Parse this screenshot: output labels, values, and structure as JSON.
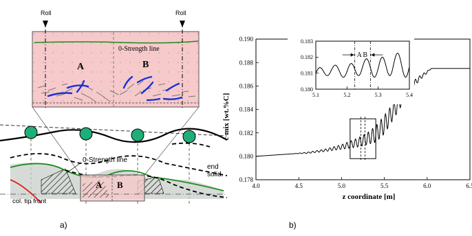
{
  "panel_a": {
    "roll_label": "Roll",
    "zero_strength_label": "0-Strength line",
    "region_a": "A",
    "region_b": "B",
    "end_solid_label": "end\nsolid.",
    "col_tip_front_label": "col. tip front",
    "caption": "a)"
  },
  "panel_b": {
    "caption": "b)"
  },
  "colors": {
    "shell_fill": "#f6c9cb",
    "roller_fill": "#1fae78",
    "arrow_blue": "#1a2fd8",
    "green_line": "#1c8a1c",
    "red_line": "#e02020"
  },
  "chart_data": [
    {
      "type": "line",
      "title": "",
      "xlabel": "z coordinate [m]",
      "ylabel": "c mix [wt.%C]",
      "xlim": [
        4.0,
        6.5
      ],
      "ylim": [
        0.178,
        0.19
      ],
      "xticks": [
        "4.0",
        "4.5",
        "5.0",
        "5.5",
        "6.0",
        "6.5"
      ],
      "yticks": [
        "0.178",
        "0.180",
        "0.182",
        "0.184",
        "0.186",
        "0.188",
        "0.190"
      ],
      "grid": false,
      "series": [
        {
          "x": [
            4.0,
            4.2,
            4.4,
            4.6,
            4.8,
            5.0,
            5.1,
            5.2,
            5.3,
            5.4,
            5.5,
            5.6,
            5.7,
            5.8,
            5.9,
            6.0,
            6.05,
            6.1,
            6.2,
            6.3
          ],
          "y": [
            0.18,
            0.1801,
            0.1802,
            0.1803,
            0.1805,
            0.1808,
            0.181,
            0.1812,
            0.1815,
            0.1819,
            0.1827,
            0.1838,
            0.1849,
            0.1858,
            0.1866,
            0.1872,
            0.1875,
            0.1875,
            0.1875,
            0.1875
          ],
          "oscillation_amplitude": [
            0,
            0,
            0,
            5e-05,
            0.0001,
            0.0002,
            0.0003,
            0.0004,
            0.0005,
            0.0007,
            0.0008,
            0.0007,
            0.0006,
            0.0004,
            0.0002,
            0.0001,
            0,
            0,
            0,
            0
          ]
        }
      ]
    },
    {
      "type": "line",
      "title": "",
      "xlim": [
        5.1,
        5.4
      ],
      "ylim": [
        0.18,
        0.183
      ],
      "xticks": [
        "5.1",
        "5.2",
        "5.3",
        "5.4"
      ],
      "yticks": [
        "0.180",
        "0.181",
        "0.182",
        "0.183"
      ],
      "annotations": [
        "A",
        "B"
      ],
      "series": [
        {
          "x": [
            5.1,
            5.15,
            5.2,
            5.25,
            5.3,
            5.35,
            5.4
          ],
          "y": [
            0.181,
            0.1812,
            0.1811,
            0.1814,
            0.1813,
            0.1816,
            0.1814
          ],
          "oscillation_amplitude": [
            0.0003,
            0.0003,
            0.0004,
            0.0005,
            0.0006,
            0.0007,
            0.0007
          ]
        }
      ]
    }
  ]
}
